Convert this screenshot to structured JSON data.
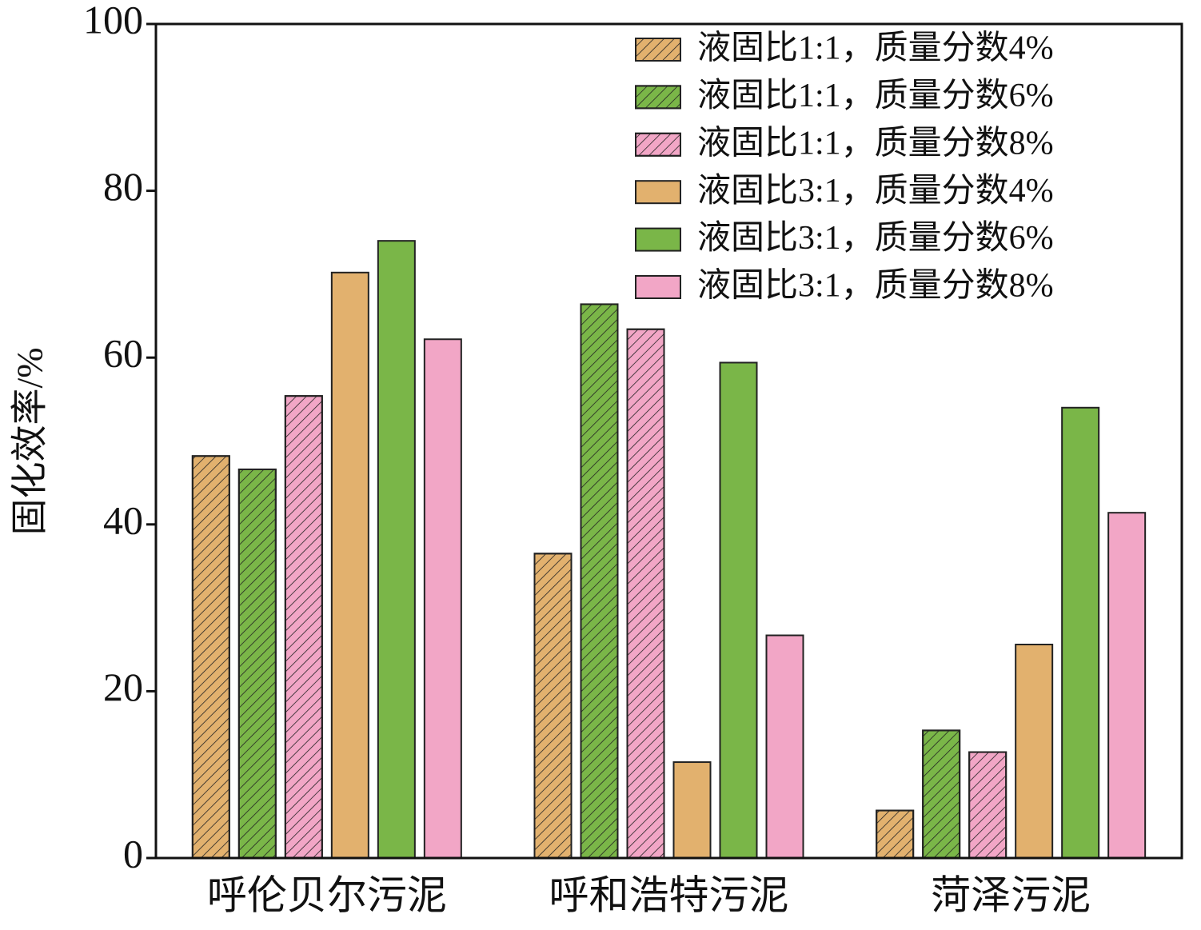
{
  "chart_data": {
    "type": "bar",
    "y_label": "固化效率/%",
    "categories": [
      "呼伦贝尔污泥",
      "呼和浩特污泥",
      "菏泽污泥"
    ],
    "series": [
      {
        "name": "液固比1:1，质量分数4%",
        "color": "#e2b16e",
        "hatch": true,
        "values": [
          48.2,
          36.5,
          5.7
        ]
      },
      {
        "name": "液固比1:1，质量分数6%",
        "color": "#7ab648",
        "hatch": true,
        "values": [
          46.6,
          66.4,
          15.3
        ]
      },
      {
        "name": "液固比1:1，质量分数8%",
        "color": "#f2a6c6",
        "hatch": true,
        "values": [
          55.4,
          63.4,
          12.7
        ]
      },
      {
        "name": "液固比3:1，质量分数4%",
        "color": "#e2b16e",
        "hatch": false,
        "values": [
          70.2,
          11.5,
          25.6
        ]
      },
      {
        "name": "液固比3:1，质量分数6%",
        "color": "#7ab648",
        "hatch": false,
        "values": [
          74.0,
          59.4,
          54.0
        ]
      },
      {
        "name": "液固比3:1，质量分数8%",
        "color": "#f2a6c6",
        "hatch": false,
        "values": [
          62.2,
          26.7,
          41.4
        ]
      }
    ],
    "ylim": [
      0,
      100
    ],
    "yticks": [
      0,
      20,
      40,
      60,
      80,
      100
    ],
    "legend": "upper right"
  }
}
